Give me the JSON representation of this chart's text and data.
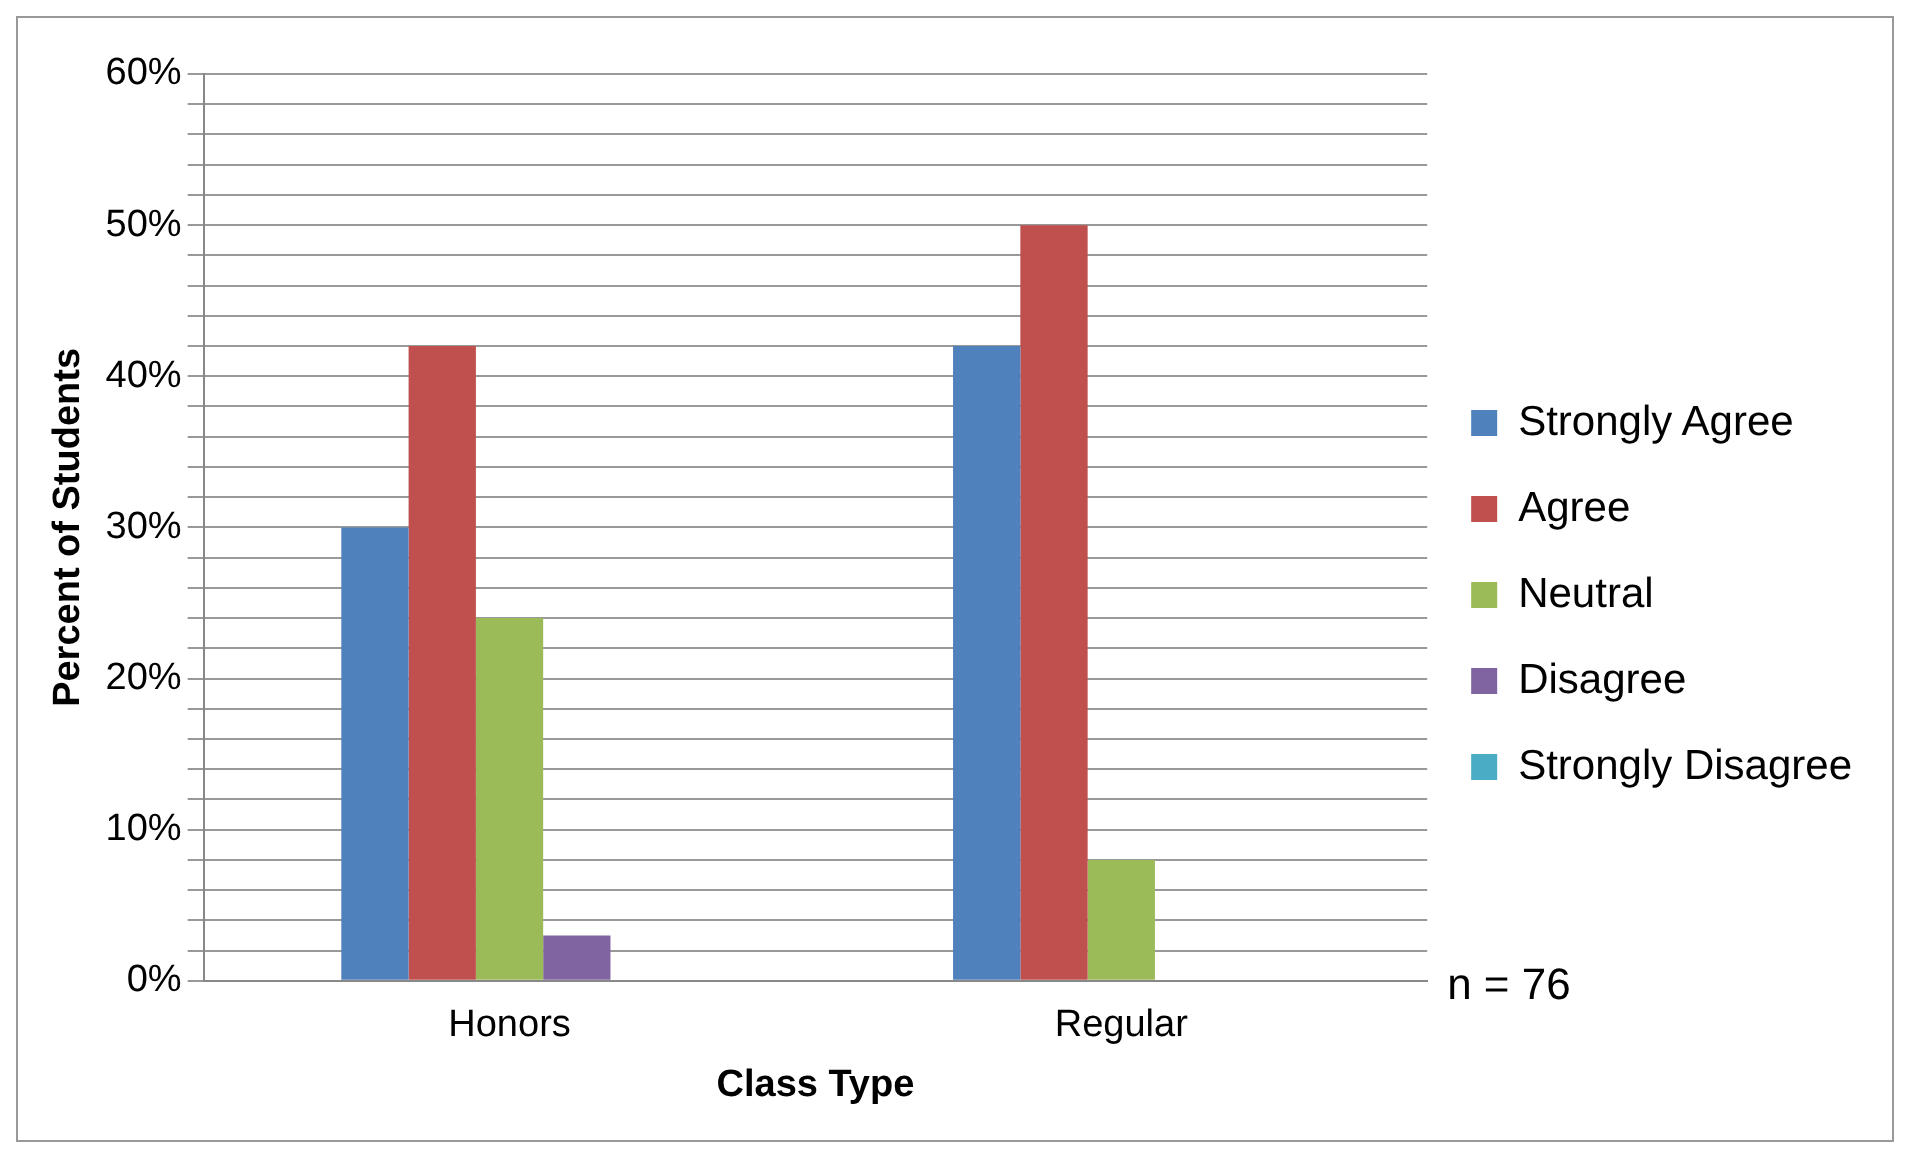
{
  "chart_data": {
    "type": "bar",
    "xlabel": "Class Type",
    "ylabel": "Percent of Students",
    "categories": [
      "Honors",
      "Regular"
    ],
    "series": [
      {
        "name": "Strongly Agree",
        "color": "#4f81bd",
        "values": [
          30,
          42
        ]
      },
      {
        "name": "Agree",
        "color": "#c0504d",
        "values": [
          42,
          50
        ]
      },
      {
        "name": "Neutral",
        "color": "#9bbb59",
        "values": [
          24,
          8
        ]
      },
      {
        "name": "Disagree",
        "color": "#8064a2",
        "values": [
          3,
          0
        ]
      },
      {
        "name": "Strongly Disagree",
        "color": "#4bacc6",
        "values": [
          0,
          0
        ]
      }
    ],
    "ylim": [
      0,
      60
    ],
    "yticks": [
      {
        "value": 0,
        "label": "0%"
      },
      {
        "value": 2,
        "label": null
      },
      {
        "value": 4,
        "label": null
      },
      {
        "value": 6,
        "label": null
      },
      {
        "value": 8,
        "label": null
      },
      {
        "value": 10,
        "label": "10%"
      },
      {
        "value": 12,
        "label": null
      },
      {
        "value": 14,
        "label": null
      },
      {
        "value": 16,
        "label": null
      },
      {
        "value": 18,
        "label": null
      },
      {
        "value": 20,
        "label": "20%"
      },
      {
        "value": 22,
        "label": null
      },
      {
        "value": 24,
        "label": null
      },
      {
        "value": 26,
        "label": null
      },
      {
        "value": 28,
        "label": null
      },
      {
        "value": 30,
        "label": "30%"
      },
      {
        "value": 32,
        "label": null
      },
      {
        "value": 34,
        "label": null
      },
      {
        "value": 36,
        "label": null
      },
      {
        "value": 38,
        "label": null
      },
      {
        "value": 40,
        "label": "40%"
      },
      {
        "value": 42,
        "label": null
      },
      {
        "value": 44,
        "label": null
      },
      {
        "value": 46,
        "label": null
      },
      {
        "value": 48,
        "label": null
      },
      {
        "value": 50,
        "label": "50%"
      },
      {
        "value": 52,
        "label": null
      },
      {
        "value": 54,
        "label": null
      },
      {
        "value": 56,
        "label": null
      },
      {
        "value": 58,
        "label": null
      },
      {
        "value": 60,
        "label": "60%"
      }
    ],
    "grid": "y",
    "legend": "right",
    "annotations": [
      "n = 76"
    ]
  }
}
